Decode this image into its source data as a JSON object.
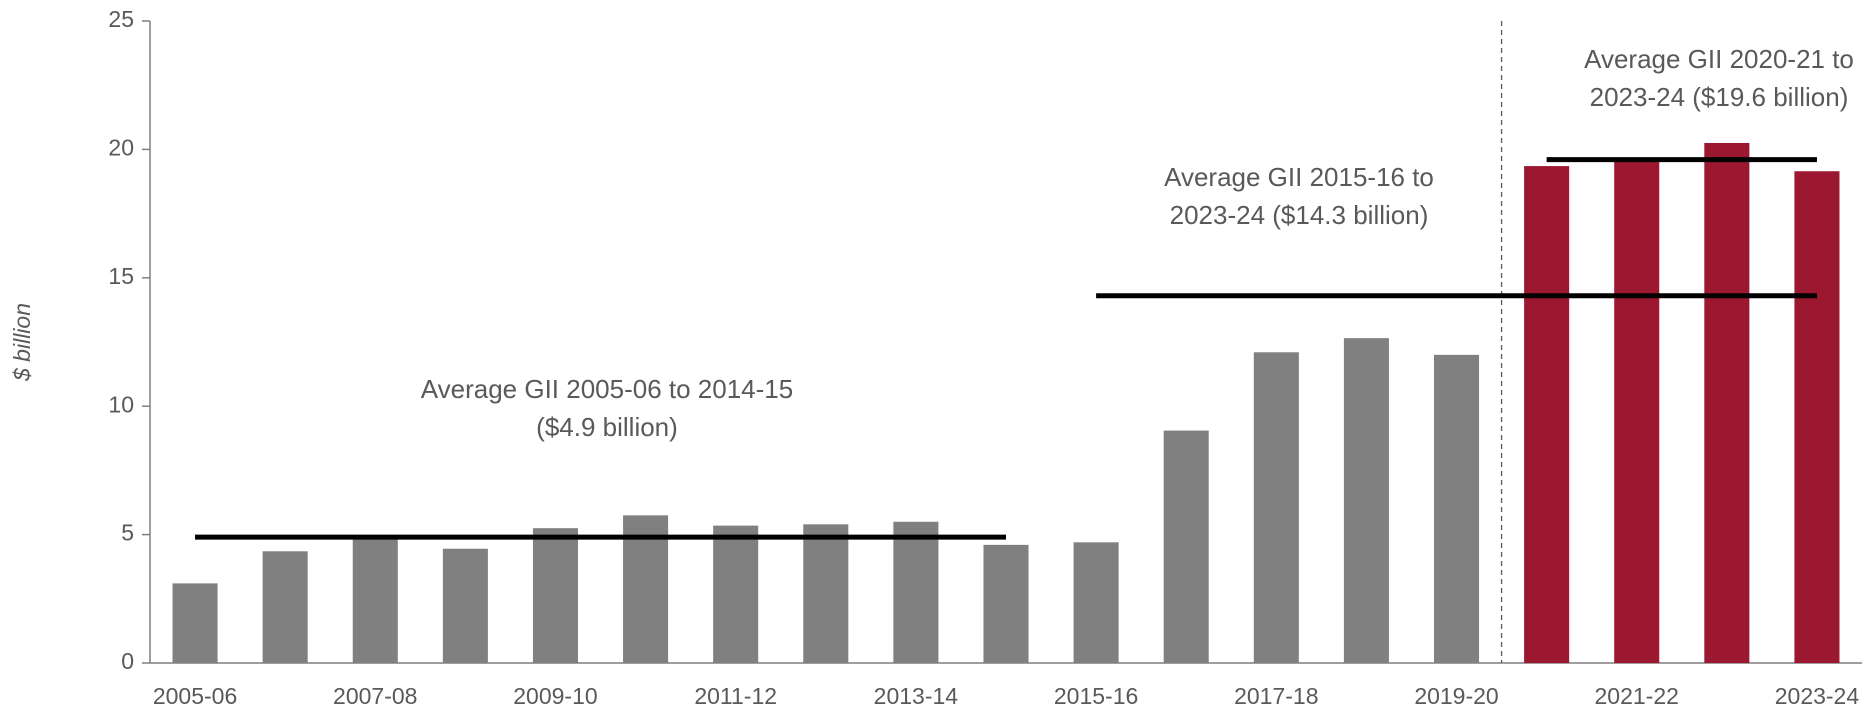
{
  "chart_data": {
    "type": "bar",
    "y_axis_label": "$ billion",
    "categories": [
      "2005-06",
      null,
      "2007-08",
      null,
      "2009-10",
      null,
      "2011-12",
      null,
      "2013-14",
      null,
      "2015-16",
      null,
      "2017-18",
      null,
      "2019-20",
      null,
      "2021-22",
      null,
      "2023-24"
    ],
    "values": [
      3.1,
      4.35,
      4.9,
      4.45,
      5.25,
      5.75,
      5.35,
      5.4,
      5.5,
      4.6,
      4.7,
      9.05,
      12.1,
      12.65,
      12.0,
      19.35,
      19.6,
      20.25,
      19.15
    ],
    "colors": [
      "#808080",
      "#808080",
      "#808080",
      "#808080",
      "#808080",
      "#808080",
      "#808080",
      "#808080",
      "#808080",
      "#808080",
      "#808080",
      "#808080",
      "#808080",
      "#808080",
      "#808080",
      "#9b1830",
      "#9b1830",
      "#9b1830",
      "#9b1830"
    ],
    "ylim": [
      0,
      25
    ],
    "yticks": [
      0,
      5,
      10,
      15,
      20,
      25
    ],
    "averages": [
      {
        "value": 4.9,
        "from": 0,
        "to": 9,
        "label": [
          "Average GII 2005-06 to 2014-15",
          "($4.9 billion)"
        ]
      },
      {
        "value": 14.3,
        "from": 10,
        "to": 18,
        "label": [
          "Average GII 2015-16 to",
          "2023-24 ($14.3 billion)"
        ]
      },
      {
        "value": 19.6,
        "from": 15,
        "to": 18,
        "label": [
          "Average GII 2020-21 to",
          "2023-24 ($19.6 billion)"
        ]
      }
    ]
  }
}
